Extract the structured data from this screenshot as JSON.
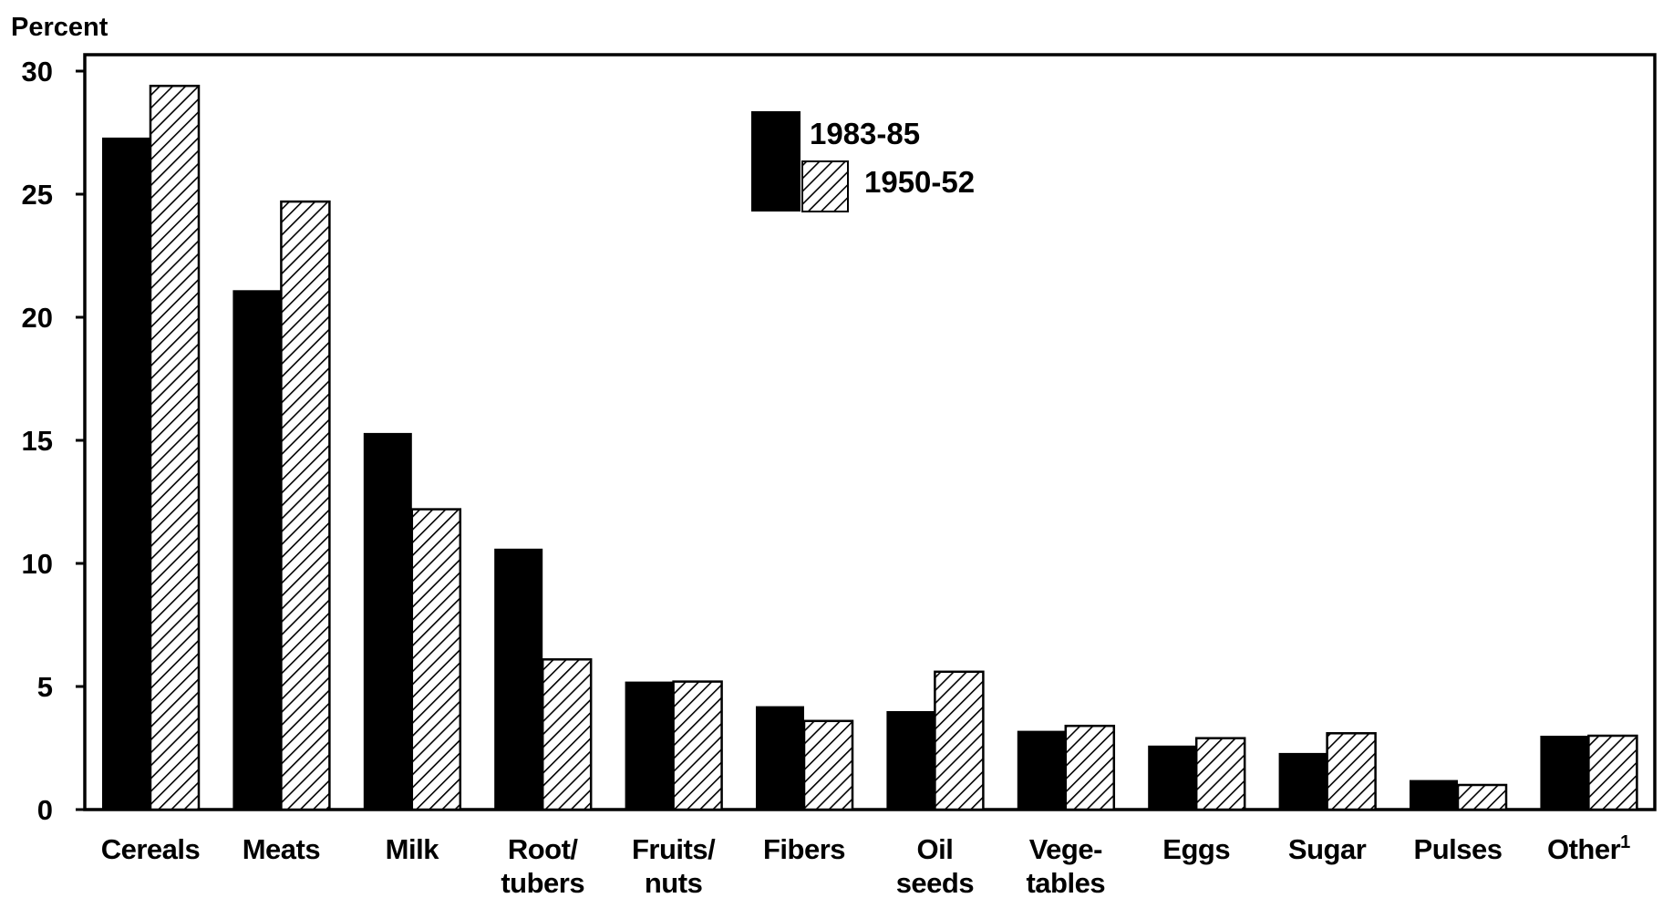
{
  "chart_data": {
    "type": "bar",
    "ylabel": "Percent",
    "ylim": [
      0,
      30
    ],
    "yticks": [
      "0",
      "5",
      "10",
      "15",
      "20",
      "25",
      "30"
    ],
    "categories": [
      "Cereals",
      "Meats",
      "Milk",
      "Root/\ntubers",
      "Fruits/\nnuts",
      "Fibers",
      "Oil\nseeds",
      "Vege-\ntables",
      "Eggs",
      "Sugar",
      "Pulses",
      "Other"
    ],
    "last_category_footnote": "1",
    "series": [
      {
        "name": "1983-85",
        "fill": "solid",
        "values": [
          27.3,
          21.1,
          15.3,
          10.6,
          5.2,
          4.2,
          4.0,
          3.2,
          2.6,
          2.3,
          1.2,
          3.0
        ]
      },
      {
        "name": "1950-52",
        "fill": "hatched",
        "values": [
          29.4,
          24.7,
          12.2,
          6.1,
          5.2,
          3.6,
          5.6,
          3.4,
          2.9,
          3.1,
          1.0,
          3.0
        ]
      }
    ],
    "legend": {
      "position": "top-center",
      "entries": [
        "1983-85",
        "1950-52"
      ]
    },
    "grid": false,
    "colors": {
      "solid": "#000000",
      "hatched_line": "#000000",
      "background": "#ffffff"
    }
  }
}
